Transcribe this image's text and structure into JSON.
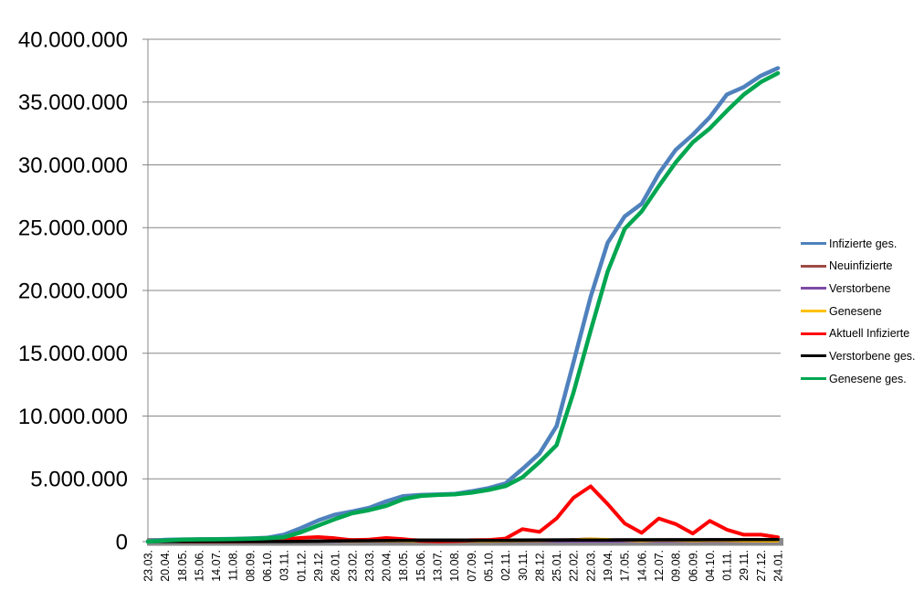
{
  "chart_data": {
    "type": "line",
    "title": "",
    "xlabel": "",
    "ylabel": "",
    "ylim": [
      0,
      40000000
    ],
    "y_tick_step": 5000000,
    "y_tick_labels": [
      "0",
      "5.000.000",
      "10.000.000",
      "15.000.000",
      "20.000.000",
      "25.000.000",
      "30.000.000",
      "35.000.000",
      "40.000.000"
    ],
    "grid": true,
    "legend_position": "right",
    "gridline_color": "#878787",
    "axis_bar_color": "#8A8A8A",
    "categories": [
      "23.03.",
      "20.04.",
      "18.05.",
      "15.06.",
      "14.07.",
      "11.08.",
      "08.09.",
      "06.10.",
      "03.11.",
      "01.12.",
      "29.12.",
      "26.01.",
      "23.02.",
      "23.03.",
      "20.04.",
      "18.05.",
      "15.06.",
      "13.07.",
      "10.08.",
      "07.09.",
      "05.10.",
      "02.11.",
      "30.11.",
      "28.12.",
      "25.01.",
      "22.02.",
      "22.03.",
      "19.04.",
      "17.05.",
      "14.06.",
      "12.07.",
      "09.08.",
      "06.09.",
      "04.10.",
      "01.11.",
      "29.11.",
      "27.12.",
      "24.01."
    ],
    "series": [
      {
        "name": "Infizierte ges.",
        "color": "#4F81BD",
        "width": 4.5,
        "values": [
          30000,
          145000,
          175000,
          187000,
          199000,
          218000,
          255000,
          306000,
          560000,
          1080000,
          1690000,
          2150000,
          2410000,
          2690000,
          3210000,
          3620000,
          3720000,
          3750000,
          3800000,
          4010000,
          4260000,
          4630000,
          5790000,
          7010000,
          9200000,
          14300000,
          19500000,
          23800000,
          25900000,
          26900000,
          29300000,
          31200000,
          32400000,
          33800000,
          35600000,
          36200000,
          37100000,
          37700000
        ]
      },
      {
        "name": "Neuinfizierte",
        "color": "#9E4B45",
        "width": 2.5,
        "values": [
          4000,
          2000,
          600,
          300,
          400,
          1200,
          1500,
          3000,
          18000,
          18000,
          22000,
          12000,
          8000,
          17000,
          25000,
          7000,
          1000,
          1500,
          4000,
          10000,
          9000,
          21000,
          55000,
          40000,
          120000,
          190000,
          250000,
          160000,
          50000,
          30000,
          110000,
          60000,
          40000,
          90000,
          50000,
          30000,
          25000,
          10000
        ]
      },
      {
        "name": "Verstorbene",
        "color": "#7D4BA3",
        "width": 2.5,
        "values": [
          100,
          200,
          100,
          50,
          10,
          10,
          20,
          30,
          200,
          600,
          1000,
          900,
          400,
          200,
          300,
          200,
          100,
          30,
          20,
          100,
          100,
          200,
          400,
          400,
          200,
          300,
          300,
          300,
          200,
          100,
          100,
          200,
          200,
          200,
          200,
          200,
          200,
          100
        ]
      },
      {
        "name": "Genesene",
        "color": "#FFC000",
        "width": 2.5,
        "values": [
          2000,
          3000,
          1000,
          400,
          400,
          1000,
          1000,
          2000,
          10000,
          17000,
          21000,
          15000,
          9000,
          12000,
          22000,
          12000,
          3000,
          1000,
          3000,
          8000,
          9000,
          15000,
          35000,
          45000,
          90000,
          170000,
          230000,
          200000,
          80000,
          40000,
          90000,
          70000,
          45000,
          75000,
          60000,
          35000,
          30000,
          15000
        ]
      },
      {
        "name": "Aktuell Infizierte",
        "color": "#FF0000",
        "width": 4,
        "values": [
          22000,
          48000,
          15000,
          7000,
          5000,
          10000,
          21000,
          32000,
          180000,
          300000,
          360000,
          270000,
          120000,
          170000,
          290000,
          200000,
          60000,
          21000,
          35000,
          90000,
          130000,
          250000,
          1000000,
          780000,
          1850000,
          3500000,
          4400000,
          3000000,
          1450000,
          700000,
          1850000,
          1400000,
          650000,
          1650000,
          950000,
          550000,
          550000,
          350000
        ]
      },
      {
        "name": "Verstorbene ges.",
        "color": "#000000",
        "width": 3.5,
        "values": [
          200,
          4800,
          8000,
          8800,
          9100,
          9200,
          9300,
          9600,
          10600,
          17000,
          32000,
          53000,
          68000,
          75000,
          81000,
          86000,
          90000,
          91300,
          91800,
          92400,
          93800,
          95800,
          101000,
          111000,
          117000,
          121000,
          127000,
          133000,
          137000,
          140000,
          142000,
          144000,
          147000,
          150000,
          153000,
          157000,
          161000,
          165000
        ]
      },
      {
        "name": "Genesene ges.",
        "color": "#00A650",
        "width": 4.5,
        "values": [
          3000,
          85000,
          155000,
          172000,
          185000,
          202000,
          228000,
          272000,
          350000,
          750000,
          1280000,
          1800000,
          2260000,
          2510000,
          2850000,
          3380000,
          3640000,
          3720000,
          3760000,
          3900000,
          4120000,
          4420000,
          5130000,
          6330000,
          7690000,
          11900000,
          16800000,
          21500000,
          24900000,
          26300000,
          28300000,
          30200000,
          31800000,
          32900000,
          34300000,
          35600000,
          36600000,
          37300000
        ]
      }
    ]
  }
}
